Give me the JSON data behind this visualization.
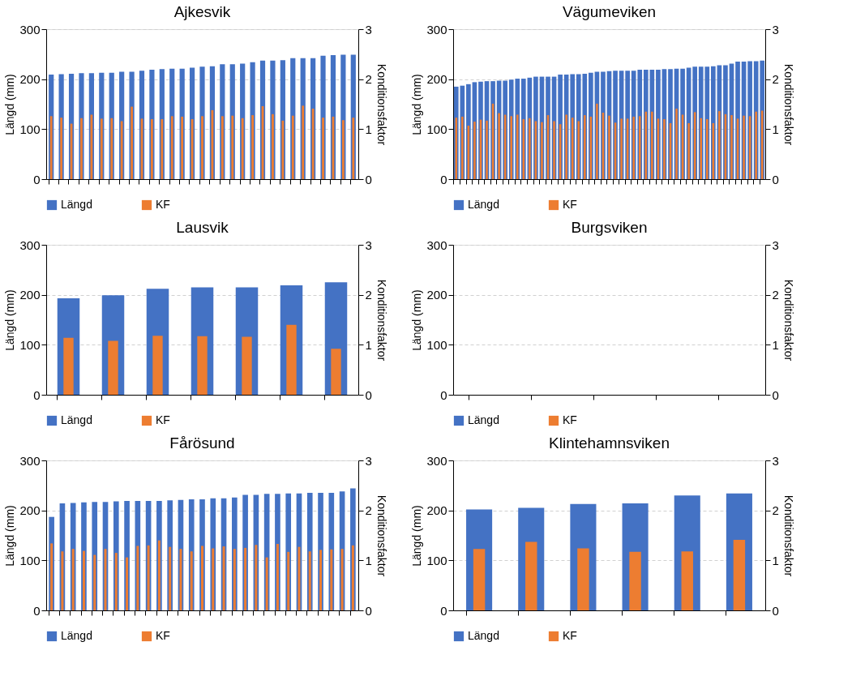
{
  "chart_data": [
    {
      "type": "bar",
      "title": "Ajkesvik",
      "ylabel": "Längd (mm)",
      "y2label": "Konditionsfaktor",
      "ylim": [
        0,
        300
      ],
      "yticks": [
        0,
        100,
        200,
        300
      ],
      "y2lim": [
        0,
        3
      ],
      "y2ticks": [
        0,
        1,
        2,
        3
      ],
      "grid": "y",
      "legend": "bottom",
      "categories": [
        null,
        null,
        null,
        null,
        null,
        null,
        null,
        null,
        null,
        null,
        null,
        null,
        null,
        null,
        null,
        null,
        null,
        null,
        null,
        null,
        null,
        null,
        null,
        null,
        null,
        null,
        null,
        null,
        null,
        null,
        null
      ],
      "series": [
        {
          "name": "Längd",
          "color": "#4472c4",
          "values": [
            209,
            210,
            211,
            212,
            212,
            213,
            213,
            215,
            215,
            217,
            219,
            220,
            221,
            221,
            223,
            225,
            226,
            230,
            230,
            231,
            234,
            237,
            237,
            238,
            242,
            242,
            242,
            247,
            248,
            249,
            249
          ]
        },
        {
          "name": "KF",
          "color": "#ed7d31",
          "axis": "y2",
          "values": [
            1.26,
            1.23,
            1.11,
            1.22,
            1.29,
            1.21,
            1.22,
            1.16,
            1.45,
            1.21,
            1.2,
            1.2,
            1.26,
            1.25,
            1.2,
            1.26,
            1.38,
            1.26,
            1.27,
            1.22,
            1.28,
            1.46,
            1.3,
            1.17,
            1.27,
            1.47,
            1.41,
            1.23,
            1.25,
            1.18,
            1.23
          ]
        }
      ]
    },
    {
      "type": "bar",
      "title": "Vägumeviken",
      "ylabel": "Längd (mm)",
      "y2label": "Konditionsfaktor",
      "ylim": [
        0,
        300
      ],
      "yticks": [
        0,
        100,
        200,
        300
      ],
      "y2lim": [
        0,
        3
      ],
      "y2ticks": [
        0,
        1,
        2,
        3
      ],
      "grid": "y",
      "legend": "bottom",
      "categories": [
        null,
        null,
        null,
        null,
        null,
        null,
        null,
        null,
        null,
        null,
        null,
        null,
        null,
        null,
        null,
        null,
        null,
        null,
        null,
        null,
        null,
        null,
        null,
        null,
        null,
        null,
        null,
        null,
        null,
        null,
        null,
        null,
        null,
        null,
        null,
        null,
        null,
        null,
        null,
        null,
        null,
        null,
        null,
        null,
        null,
        null,
        null,
        null,
        null,
        null,
        null
      ],
      "series": [
        {
          "name": "Längd",
          "color": "#4472c4",
          "values": [
            185,
            187,
            190,
            194,
            195,
            196,
            196,
            197,
            197,
            199,
            201,
            201,
            203,
            205,
            205,
            205,
            205,
            209,
            209,
            210,
            210,
            211,
            213,
            215,
            215,
            216,
            217,
            217,
            217,
            217,
            219,
            219,
            219,
            219,
            220,
            220,
            221,
            221,
            223,
            225,
            225,
            225,
            226,
            228,
            228,
            231,
            235,
            235,
            236,
            236,
            237
          ]
        },
        {
          "name": "KF",
          "color": "#ed7d31",
          "axis": "y2",
          "values": [
            1.23,
            1.25,
            1.07,
            1.15,
            1.19,
            1.17,
            1.51,
            1.32,
            1.29,
            1.26,
            1.29,
            1.2,
            1.22,
            1.16,
            1.14,
            1.28,
            1.16,
            1.1,
            1.29,
            1.23,
            1.16,
            1.28,
            1.25,
            1.51,
            1.33,
            1.27,
            1.13,
            1.21,
            1.21,
            1.25,
            1.26,
            1.35,
            1.35,
            1.21,
            1.2,
            1.12,
            1.41,
            1.29,
            1.12,
            1.34,
            1.22,
            1.2,
            1.12,
            1.36,
            1.3,
            1.28,
            1.21,
            1.27,
            1.26,
            1.35,
            1.37
          ]
        }
      ]
    },
    {
      "type": "bar",
      "title": "Lausvik",
      "ylabel": "Längd (mm)",
      "y2label": "Konditionsfaktor",
      "ylim": [
        0,
        300
      ],
      "yticks": [
        0,
        100,
        200,
        300
      ],
      "y2lim": [
        0,
        3
      ],
      "y2ticks": [
        0,
        1,
        2,
        3
      ],
      "grid": "y",
      "legend": "bottom",
      "categories": [
        null,
        null,
        null,
        null,
        null,
        null,
        null
      ],
      "series": [
        {
          "name": "Längd",
          "color": "#4472c4",
          "values": [
            193,
            199,
            212,
            215,
            215,
            219,
            225
          ]
        },
        {
          "name": "KF",
          "color": "#ed7d31",
          "axis": "y2",
          "values": [
            1.14,
            1.08,
            1.18,
            1.17,
            1.16,
            1.4,
            0.92
          ]
        }
      ]
    },
    {
      "type": "bar",
      "title": "Burgsviken",
      "ylabel": "Längd (mm)",
      "y2label": "Konditionsfaktor",
      "ylim": [
        0,
        300
      ],
      "yticks": [
        0,
        100,
        200,
        300
      ],
      "y2lim": [
        0,
        3
      ],
      "y2ticks": [
        0,
        1,
        2,
        3
      ],
      "grid": "y",
      "legend": "bottom",
      "categories": [
        null,
        null,
        null,
        null,
        null
      ],
      "series": [
        {
          "name": "Längd",
          "color": "#4472c4",
          "values": [
            null,
            null,
            null,
            null,
            null
          ]
        },
        {
          "name": "KF",
          "color": "#ed7d31",
          "axis": "y2",
          "values": [
            null,
            null,
            null,
            null,
            null
          ]
        }
      ]
    },
    {
      "type": "bar",
      "title": "Fårösund",
      "ylabel": "Längd (mm)",
      "y2label": "Konditionsfaktor",
      "ylim": [
        0,
        300
      ],
      "yticks": [
        0,
        100,
        200,
        300
      ],
      "y2lim": [
        0,
        3
      ],
      "y2ticks": [
        0,
        1,
        2,
        3
      ],
      "grid": "y",
      "legend": "bottom",
      "categories": [
        null,
        null,
        null,
        null,
        null,
        null,
        null,
        null,
        null,
        null,
        null,
        null,
        null,
        null,
        null,
        null,
        null,
        null,
        null,
        null,
        null,
        null,
        null,
        null,
        null,
        null,
        null,
        null,
        null
      ],
      "series": [
        {
          "name": "Längd",
          "color": "#4472c4",
          "values": [
            187,
            214,
            215,
            216,
            217,
            217,
            218,
            219,
            219,
            219,
            219,
            220,
            221,
            222,
            222,
            224,
            224,
            226,
            231,
            231,
            233,
            233,
            234,
            234,
            235,
            235,
            235,
            238,
            244
          ]
        },
        {
          "name": "KF",
          "color": "#ed7d31",
          "axis": "y2",
          "values": [
            1.34,
            1.18,
            1.23,
            1.19,
            1.11,
            1.23,
            1.15,
            1.06,
            1.29,
            1.3,
            1.4,
            1.27,
            1.23,
            1.18,
            1.29,
            1.24,
            1.28,
            1.23,
            1.25,
            1.31,
            1.06,
            1.33,
            1.17,
            1.27,
            1.18,
            1.21,
            1.22,
            1.23,
            1.3
          ]
        }
      ]
    },
    {
      "type": "bar",
      "title": "Klintehamnsviken",
      "ylabel": "Längd (mm)",
      "y2label": "Konditionsfaktor",
      "ylim": [
        0,
        300
      ],
      "yticks": [
        0,
        100,
        200,
        300
      ],
      "y2lim": [
        0,
        3
      ],
      "y2ticks": [
        0,
        1,
        2,
        3
      ],
      "grid": "y",
      "legend": "bottom",
      "categories": [
        null,
        null,
        null,
        null,
        null,
        null
      ],
      "series": [
        {
          "name": "Längd",
          "color": "#4472c4",
          "values": [
            202,
            205,
            213,
            214,
            230,
            234
          ]
        },
        {
          "name": "KF",
          "color": "#ed7d31",
          "axis": "y2",
          "values": [
            1.23,
            1.37,
            1.24,
            1.17,
            1.18,
            1.41
          ]
        }
      ]
    }
  ]
}
